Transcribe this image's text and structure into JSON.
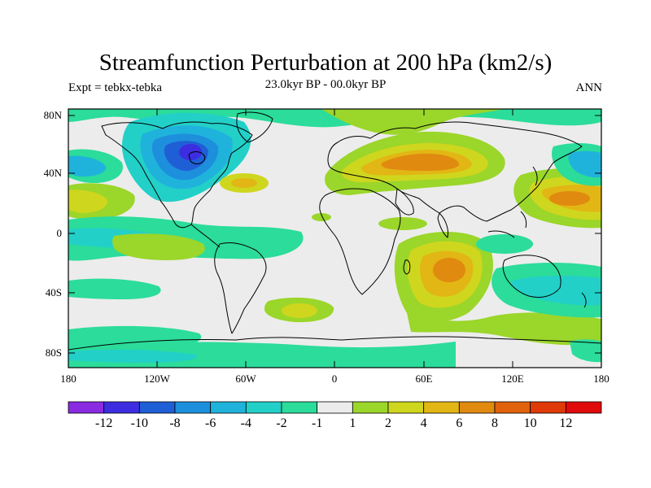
{
  "title": "Streamfunction Perturbation at 200 hPa (km2/s)",
  "left_string": "Expt = tebkx-tebka",
  "center_string": "23.0kyr BP - 00.0kyr BP",
  "right_string": "ANN",
  "lat_labels": [
    "80N",
    "40N",
    "0",
    "40S",
    "80S"
  ],
  "lon_labels": [
    "180",
    "120W",
    "60W",
    "0",
    "60E",
    "120E",
    "180"
  ],
  "colorbar": {
    "colors": [
      "#8a2be2",
      "#3d2de0",
      "#1f5fd6",
      "#1e8fdc",
      "#1fb3dc",
      "#22d0c8",
      "#2bdc9a",
      "#ececec",
      "#9bd62a",
      "#cfd61e",
      "#e2b614",
      "#e08a10",
      "#e0620c",
      "#e03a08",
      "#e00a0a"
    ],
    "labels": [
      "-12",
      "-10",
      "-8",
      "-6",
      "-4",
      "-2",
      "-1",
      "1",
      "2",
      "4",
      "6",
      "8",
      "10",
      "12"
    ]
  },
  "icons": {
    "coastline": "world-coastline-icon"
  }
}
